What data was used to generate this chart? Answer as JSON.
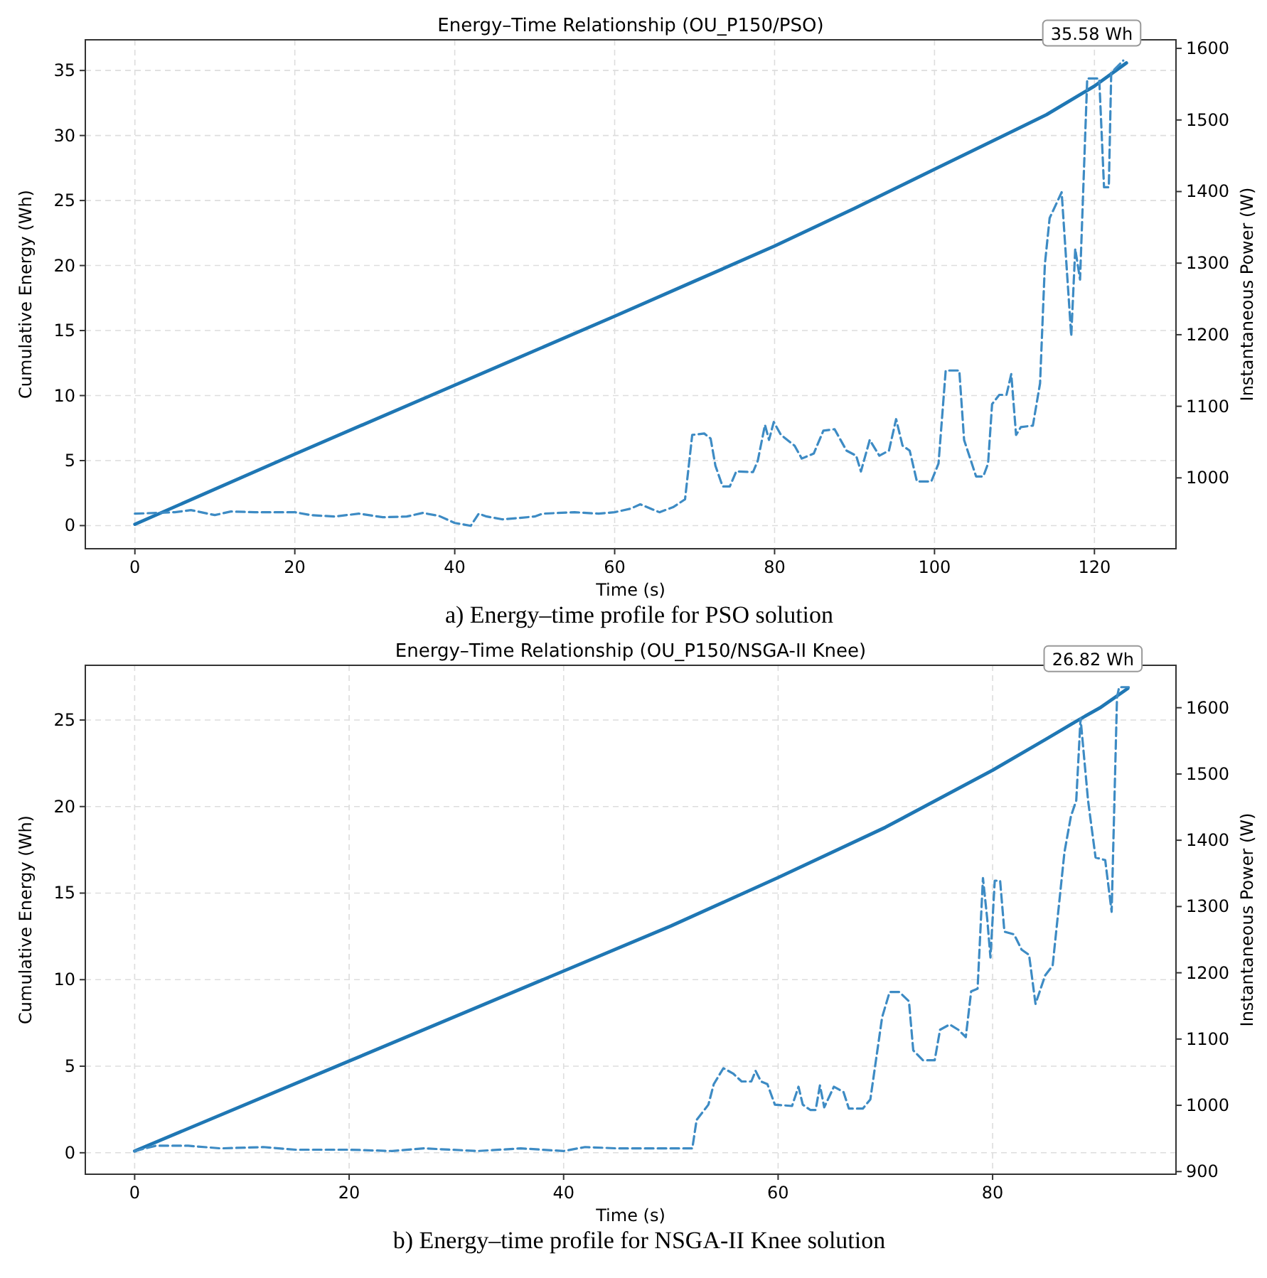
{
  "chart_data": [
    {
      "type": "line",
      "title": "Energy–Time Relationship (OU_P150/PSO)",
      "xlabel": "Time (s)",
      "ylabel": "Cumulative Energy (Wh)",
      "y2label": "Instantaneous Power (W)",
      "grid": true,
      "xlim": [
        -6.2,
        130.2
      ],
      "xticks": [
        0,
        20,
        40,
        60,
        80,
        100,
        120
      ],
      "ylim": [
        -1.78,
        37.36
      ],
      "yticks": [
        0,
        5,
        10,
        15,
        20,
        25,
        30,
        35
      ],
      "y2lim": [
        901,
        1612
      ],
      "y2ticks": [
        1000,
        1100,
        1200,
        1300,
        1400,
        1500,
        1600
      ],
      "series": [
        {
          "color": "#1f77b4",
          "line_style": "solid",
          "x": [
            0,
            20,
            40,
            60,
            70,
            80,
            90,
            100,
            110,
            114,
            120,
            124
          ],
          "values": [
            0.1,
            5.5,
            10.8,
            16.1,
            18.8,
            21.5,
            24.4,
            27.4,
            30.4,
            31.6,
            33.8,
            35.58
          ]
        },
        {
          "color": "#3d8bc4",
          "line_style": "dashed",
          "axis": "y2",
          "x": [
            0,
            5,
            7,
            10,
            12,
            15,
            20,
            22,
            25,
            28,
            31,
            34,
            36,
            38,
            40,
            42,
            43,
            44,
            46,
            50,
            51,
            55,
            58,
            60,
            62,
            63.2,
            65.6,
            67.3,
            68.8,
            69.7,
            71.2,
            72,
            72.6,
            73.5,
            74.4,
            75.2,
            77.3,
            77.9,
            78.8,
            79.3,
            79.9,
            80.8,
            82.5,
            83.4,
            84.9,
            86.1,
            87.5,
            89,
            90.2,
            90.8,
            91.9,
            93.1,
            94.3,
            95.2,
            96,
            96.9,
            97.8,
            99.6,
            100.5,
            101.4,
            103.1,
            103.7,
            105.2,
            106.1,
            106.7,
            107.2,
            108.1,
            109,
            109.6,
            110.2,
            110.8,
            112.3,
            113.2,
            113.8,
            114.4,
            115.9,
            117.1,
            117.6,
            118.2,
            119.1,
            120.6,
            121.2,
            121.8,
            122.1,
            123.6
          ],
          "values": [
            950,
            952,
            955,
            948,
            953,
            952,
            952,
            948,
            946,
            950,
            945,
            946,
            951,
            947,
            937,
            933,
            950,
            946,
            942,
            946,
            950,
            952,
            950,
            952,
            957,
            963,
            952,
            959,
            970,
            1060,
            1062,
            1055,
            1017,
            988,
            988,
            1009,
            1008,
            1024,
            1074,
            1053,
            1078,
            1060,
            1045,
            1027,
            1034,
            1066,
            1068,
            1038,
            1031,
            1009,
            1053,
            1031,
            1038,
            1082,
            1045,
            1038,
            995,
            995,
            1020,
            1150,
            1150,
            1053,
            1002,
            1002,
            1020,
            1103,
            1116,
            1116,
            1145,
            1060,
            1071,
            1073,
            1132,
            1298,
            1363,
            1399,
            1198,
            1320,
            1277,
            1558,
            1558,
            1406,
            1406,
            1566,
            1583
          ]
        }
      ],
      "annotations": [
        {
          "text": "35.58 Wh",
          "x": 124,
          "y": 35.58
        },
        "a) Energy–time profile for PSO solution"
      ]
    },
    {
      "type": "line",
      "title": "Energy–Time Relationship (OU_P150/NSGA-II Knee)",
      "xlabel": "Time (s)",
      "ylabel": "Cumulative Energy (Wh)",
      "y2label": "Instantaneous Power (W)",
      "grid": true,
      "xlim": [
        -4.6,
        97.1
      ],
      "xticks": [
        0,
        20,
        40,
        60,
        80
      ],
      "ylim": [
        -1.24,
        28.16
      ],
      "yticks": [
        0,
        5,
        10,
        15,
        20,
        25
      ],
      "y2lim": [
        896,
        1664
      ],
      "y2ticks": [
        900,
        1000,
        1100,
        1200,
        1300,
        1400,
        1500,
        1600
      ],
      "series": [
        {
          "color": "#1f77b4",
          "line_style": "solid",
          "x": [
            0,
            20,
            40,
            50,
            60,
            70,
            80,
            85,
            88,
            90,
            92.6
          ],
          "values": [
            0.1,
            5.3,
            10.5,
            13.1,
            15.9,
            18.8,
            22.1,
            23.9,
            25,
            25.7,
            26.82
          ]
        },
        {
          "color": "#3d8bc4",
          "line_style": "dashed",
          "axis": "y2",
          "x": [
            0,
            2,
            5,
            8,
            12,
            15,
            20,
            24,
            27,
            32,
            36,
            40,
            42,
            45,
            52,
            52.4,
            53.5,
            54,
            54.9,
            55.8,
            56.6,
            57.5,
            57.9,
            58.4,
            59,
            59.7,
            61.3,
            61.9,
            62.3,
            63,
            63.5,
            63.9,
            64.3,
            65.2,
            66.1,
            66.6,
            67.9,
            68.6,
            69.7,
            70.4,
            71.3,
            72.2,
            72.6,
            73.5,
            74.6,
            75.1,
            76,
            76.8,
            77.5,
            78,
            78.6,
            79.1,
            79.5,
            79.8,
            80.2,
            80.7,
            81.1,
            82,
            82.7,
            83.4,
            84,
            84.9,
            85.6,
            86.7,
            87.3,
            87.8,
            88.2,
            88.9,
            89.6,
            90.5,
            91.1,
            91.6,
            91.8,
            92.7
          ],
          "values": [
            931,
            939,
            939,
            935,
            937,
            933,
            933,
            931,
            935,
            931,
            935,
            931,
            937,
            935,
            935,
            978,
            1001,
            1032,
            1056,
            1048,
            1036,
            1036,
            1052,
            1036,
            1032,
            1001,
            999,
            1028,
            1001,
            993,
            993,
            1030,
            997,
            1028,
            1020,
            995,
            995,
            1009,
            1133,
            1171,
            1171,
            1157,
            1083,
            1068,
            1068,
            1114,
            1122,
            1114,
            1103,
            1172,
            1176,
            1343,
            1281,
            1223,
            1339,
            1339,
            1262,
            1258,
            1235,
            1227,
            1153,
            1196,
            1211,
            1382,
            1436,
            1460,
            1584,
            1460,
            1374,
            1370,
            1292,
            1616,
            1631,
            1631
          ]
        }
      ],
      "annotations": [
        {
          "text": "26.82 Wh",
          "x": 92.6,
          "y": 26.82
        },
        "b) Energy–time profile for NSGA-II Knee solution"
      ]
    }
  ]
}
